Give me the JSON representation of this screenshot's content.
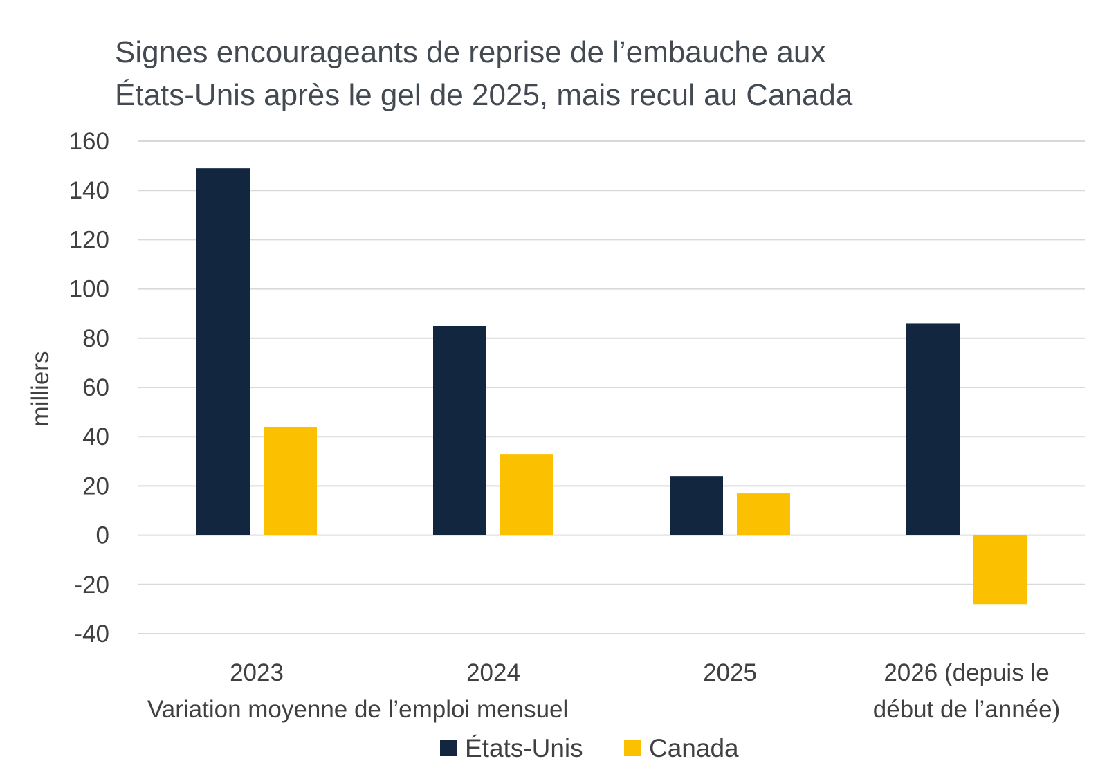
{
  "chart_data": {
    "type": "bar",
    "title": "Signes encourageants de reprise de l’embauche aux États-Unis après le gel de 2025, mais recul au Canada",
    "title_lines": [
      "Signes encourageants de reprise de l’embauche aux",
      "États-Unis après le gel de 2025, mais recul au Canada"
    ],
    "ylabel": "milliers",
    "xlabel": "Variation moyenne de l’emploi mensuel",
    "categories": [
      "2023",
      "2024",
      "2025",
      "2026 (depuis le début de l’année)"
    ],
    "category_lines": [
      [
        "2023"
      ],
      [
        "2024"
      ],
      [
        "2025"
      ],
      [
        "2026 (depuis le",
        "début de l’année)"
      ]
    ],
    "series": [
      {
        "name": "États-Unis",
        "color": "#12263f",
        "values": [
          149,
          85,
          24,
          86
        ]
      },
      {
        "name": "Canada",
        "color": "#fbc100",
        "values": [
          44,
          33,
          17,
          -28
        ]
      }
    ],
    "ylim": [
      -40,
      160
    ],
    "yticks": [
      "160",
      "140",
      "120",
      "100",
      "80",
      "60",
      "40",
      "20",
      "0",
      "-20",
      "-40"
    ],
    "grid": true,
    "legend_position": "bottom"
  }
}
